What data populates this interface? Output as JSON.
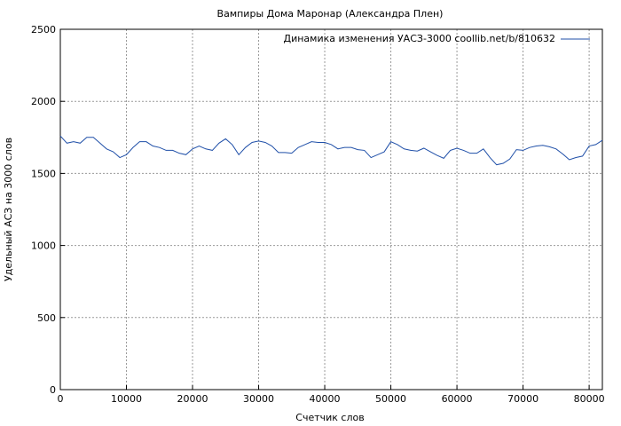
{
  "chart_data": {
    "type": "line",
    "title": "Вампиры Дома Маронар (Александра Плен)",
    "xlabel": "Счетчик слов",
    "ylabel": "Удельный АСЗ на 3000 слов",
    "xlim": [
      0,
      82000
    ],
    "ylim": [
      0,
      2500
    ],
    "x_ticks": [
      0,
      10000,
      20000,
      30000,
      40000,
      50000,
      60000,
      70000,
      80000
    ],
    "y_ticks": [
      0,
      500,
      1000,
      1500,
      2000,
      2500
    ],
    "grid": true,
    "legend_position": "top-right",
    "line_color": "#1f4fa8",
    "series": [
      {
        "name": "Динамика изменения УАСЗ-3000 coollib.net/b/810632",
        "x": [
          0,
          1000,
          2000,
          3000,
          4000,
          5000,
          6000,
          7000,
          8000,
          9000,
          10000,
          11000,
          12000,
          13000,
          14000,
          15000,
          16000,
          17000,
          18000,
          19000,
          20000,
          21000,
          22000,
          23000,
          24000,
          25000,
          26000,
          27000,
          28000,
          29000,
          30000,
          31000,
          32000,
          33000,
          34000,
          35000,
          36000,
          37000,
          38000,
          39000,
          40000,
          41000,
          42000,
          43000,
          44000,
          45000,
          46000,
          47000,
          48000,
          49000,
          50000,
          51000,
          52000,
          53000,
          54000,
          55000,
          56000,
          57000,
          58000,
          59000,
          60000,
          61000,
          62000,
          63000,
          64000,
          65000,
          66000,
          67000,
          68000,
          69000,
          70000,
          71000,
          72000,
          73000,
          74000,
          75000,
          76000,
          77000,
          78000,
          79000,
          80000,
          81000,
          82000
        ],
        "y": [
          1760,
          1710,
          1720,
          1710,
          1750,
          1750,
          1710,
          1670,
          1650,
          1610,
          1630,
          1680,
          1720,
          1720,
          1690,
          1680,
          1660,
          1660,
          1640,
          1630,
          1670,
          1690,
          1670,
          1660,
          1710,
          1740,
          1700,
          1630,
          1680,
          1715,
          1725,
          1715,
          1690,
          1645,
          1645,
          1640,
          1680,
          1700,
          1720,
          1715,
          1715,
          1700,
          1670,
          1680,
          1680,
          1665,
          1660,
          1610,
          1630,
          1650,
          1720,
          1700,
          1670,
          1660,
          1655,
          1675,
          1650,
          1625,
          1605,
          1660,
          1675,
          1660,
          1640,
          1640,
          1670,
          1610,
          1560,
          1570,
          1600,
          1665,
          1660,
          1680,
          1690,
          1695,
          1685,
          1670,
          1635,
          1595,
          1610,
          1620,
          1690,
          1700,
          1730
        ]
      }
    ]
  }
}
